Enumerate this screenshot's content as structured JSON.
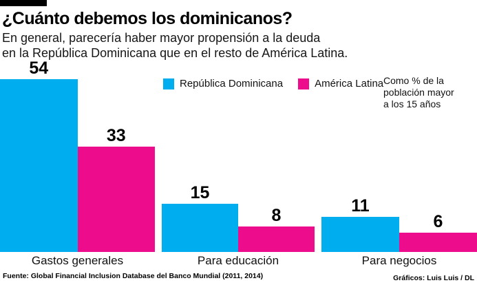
{
  "header": {
    "title": "¿Cuánto debemos los dominicanos?",
    "subtitle_line1": "En general, parecería haber mayor propensión a la deuda",
    "subtitle_line2": "en la República Dominicana que en el resto de América Latina."
  },
  "legend": {
    "items": [
      {
        "label": "República Dominicana",
        "color": "#00ADEE"
      },
      {
        "label": "América Latina",
        "color": "#EC0C8C"
      }
    ]
  },
  "note": {
    "line1": "Como % de la",
    "line2": "población mayor",
    "line3": "a los 15 años"
  },
  "chart_data": {
    "type": "bar",
    "categories": [
      "Gastos generales",
      "Para educación",
      "Para negocios"
    ],
    "series": [
      {
        "name": "República Dominicana",
        "color": "#00ADEE",
        "values": [
          54,
          15,
          11
        ]
      },
      {
        "name": "América Latina",
        "color": "#EC0C8C",
        "values": [
          33,
          8,
          6
        ]
      }
    ],
    "title": "¿Cuánto debemos los dominicanos?",
    "xlabel": "",
    "ylabel": "Como % de la población mayor a los 15 años",
    "ylim": [
      0,
      58
    ],
    "grid": false,
    "legend_position": "top",
    "value_labels": true
  },
  "footer": {
    "source": "Fuente: Global Financial Inclusion Database  del Banco Mundial (2011, 2014)",
    "credit": "Gráficos: Luis Luis / DL"
  }
}
